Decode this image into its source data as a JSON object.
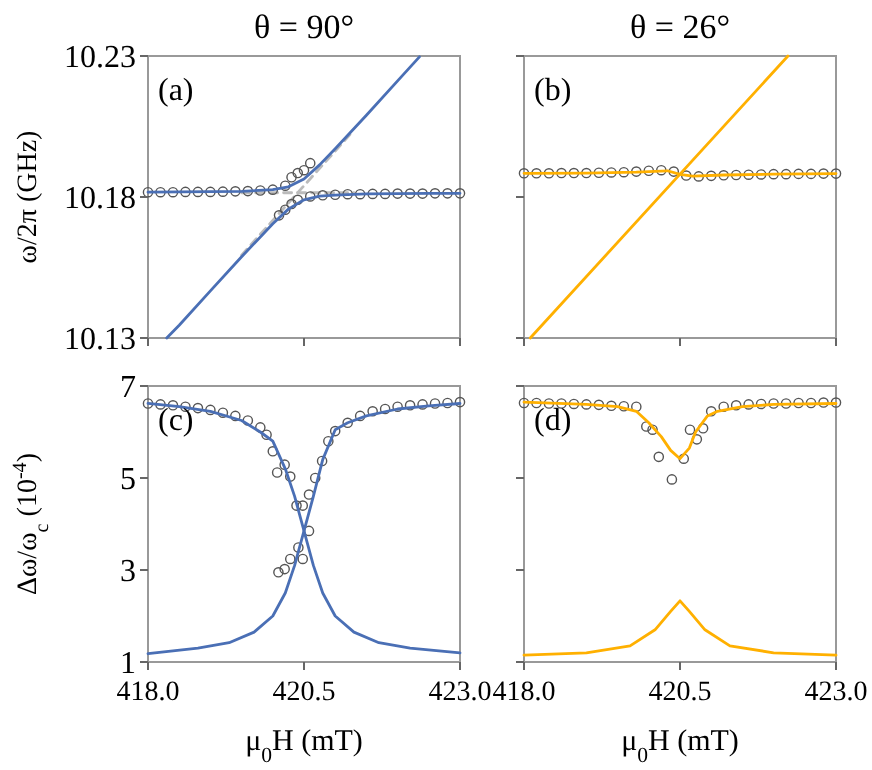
{
  "chart_data": [
    {
      "type": "line",
      "title": "θ = 90°",
      "ylabel": "ω/2π (GHz)",
      "annotations": [
        "(a)"
      ],
      "xlim": [
        418,
        423
      ],
      "xticks": [
        418,
        420.5,
        423
      ],
      "ylim": [
        10.13,
        10.23
      ],
      "yticks": [
        10.13,
        10.18,
        10.23
      ],
      "tick_labels": "y",
      "series": [
        {
          "color": "#bbbbbb",
          "line_style": "dashed",
          "x": [
            419.5,
            421.3
          ],
          "values": [
            10.1815,
            10.1815
          ]
        },
        {
          "color": "#bbbbbb",
          "line_style": "dashed",
          "x": [
            419.5,
            421.3
          ],
          "values": [
            10.1594,
            10.2037
          ]
        },
        {
          "type": "scatter",
          "marker": "circle",
          "color": "#555555",
          "x": [
            418.0,
            418.2,
            418.4,
            418.6,
            418.8,
            419.0,
            419.2,
            419.4,
            419.6,
            419.8,
            420.0,
            420.2,
            420.3,
            420.4,
            420.5,
            420.6
          ],
          "values": [
            10.1817,
            10.1817,
            10.1817,
            10.1818,
            10.1818,
            10.1818,
            10.1819,
            10.182,
            10.1821,
            10.1823,
            10.1826,
            10.184,
            10.187,
            10.1885,
            10.1895,
            10.192
          ]
        },
        {
          "type": "scatter",
          "marker": "circle",
          "color": "#555555",
          "x": [
            420.1,
            420.2,
            420.3,
            420.4,
            420.6,
            420.8,
            421.0,
            421.2,
            421.4,
            421.6,
            421.8,
            422.0,
            422.2,
            422.4,
            422.6,
            422.8,
            423.0
          ],
          "values": [
            10.1735,
            10.1755,
            10.1775,
            10.179,
            10.1802,
            10.1806,
            10.1808,
            10.181,
            10.181,
            10.1811,
            10.1811,
            10.1812,
            10.1812,
            10.1812,
            10.1813,
            10.1813,
            10.1813
          ]
        },
        {
          "color": "#4a6fb5",
          "x": [
            418,
            418.5,
            419,
            419.5,
            420,
            420.25,
            420.5,
            420.75,
            421,
            421.5,
            422,
            422.35
          ],
          "values": [
            10.1817,
            10.1818,
            10.1819,
            10.182,
            10.1826,
            10.1836,
            10.1864,
            10.1914,
            10.1971,
            10.209,
            10.2212,
            10.2297
          ]
        },
        {
          "color": "#4a6fb5",
          "x": [
            418.3,
            418.5,
            419,
            419.5,
            420,
            420.25,
            420.5,
            420.75,
            421,
            421.5,
            422,
            422.5,
            423
          ],
          "values": [
            10.13,
            10.1345,
            10.1467,
            10.1588,
            10.1705,
            10.1757,
            10.179,
            10.1803,
            10.1807,
            10.1811,
            10.1812,
            10.1813,
            10.1813
          ]
        }
      ]
    },
    {
      "type": "line",
      "title": "θ = 26°",
      "annotations": [
        "(b)"
      ],
      "xlim": [
        418,
        423
      ],
      "xticks": [
        418,
        420.5,
        423
      ],
      "ylim": [
        10.13,
        10.23
      ],
      "yticks": [
        10.13,
        10.18,
        10.23
      ],
      "tick_labels": false,
      "series": [
        {
          "type": "scatter",
          "marker": "circle",
          "color": "#555555",
          "x": [
            418.0,
            418.2,
            418.4,
            418.6,
            418.8,
            419.0,
            419.2,
            419.4,
            419.6,
            419.8,
            420.0,
            420.2,
            420.4,
            420.6,
            420.8,
            421.0,
            421.2,
            421.4,
            421.6,
            421.8,
            422.0,
            422.2,
            422.4,
            422.6,
            422.8,
            423.0
          ],
          "values": [
            10.1884,
            10.1884,
            10.1884,
            10.1885,
            10.1885,
            10.1885,
            10.1886,
            10.1887,
            10.1888,
            10.189,
            10.1893,
            10.1895,
            10.189,
            10.1876,
            10.1873,
            10.1875,
            10.1877,
            10.1878,
            10.1879,
            10.188,
            10.1881,
            10.1881,
            10.1882,
            10.1882,
            10.1883,
            10.1883
          ]
        },
        {
          "color": "#ffb000",
          "x": [
            418,
            419,
            419.8,
            420.3,
            420.5,
            420.7,
            421.2,
            422,
            423
          ],
          "values": [
            10.1884,
            10.1885,
            10.1888,
            10.1893,
            10.188,
            10.1874,
            10.1878,
            10.1881,
            10.1883
          ]
        },
        {
          "color": "#ffb000",
          "x": [
            418.1,
            422.23
          ],
          "values": [
            10.13,
            10.23
          ]
        }
      ]
    },
    {
      "type": "line",
      "xlabel": "μ$_{0}$H (mT)",
      "ylabel": "Δω/ω$_{c}$ (10$^{-4}$)",
      "annotations": [
        "(c)"
      ],
      "xlim": [
        418,
        423
      ],
      "xticks": [
        {
          "value": 418,
          "label": "418.0"
        },
        {
          "value": 420.5,
          "label": "420.5"
        },
        {
          "value": 423,
          "label": "423.0"
        }
      ],
      "ylim": [
        1,
        7
      ],
      "yticks": [
        1,
        3,
        5,
        7
      ],
      "series": [
        {
          "type": "scatter",
          "marker": "circle",
          "color": "#555555",
          "x": [
            418.0,
            418.2,
            418.4,
            418.6,
            418.8,
            419.0,
            419.2,
            419.4,
            419.6,
            419.8,
            419.9,
            420.0,
            420.07,
            420.19,
            420.28,
            420.38,
            420.48,
            420.41,
            420.48,
            420.09,
            420.19,
            420.28,
            420.58,
            420.58,
            420.68,
            420.79,
            420.89,
            421.0,
            421.2,
            421.4,
            421.6,
            421.8,
            422.0,
            422.2,
            422.4,
            422.6,
            422.8,
            423.0
          ],
          "values": [
            6.62,
            6.6,
            6.58,
            6.55,
            6.52,
            6.48,
            6.42,
            6.35,
            6.25,
            6.1,
            5.94,
            5.58,
            5.12,
            5.29,
            5.03,
            4.4,
            4.4,
            3.49,
            3.24,
            2.95,
            3.02,
            3.24,
            3.85,
            4.64,
            5.0,
            5.37,
            5.8,
            6.02,
            6.2,
            6.35,
            6.45,
            6.5,
            6.55,
            6.58,
            6.6,
            6.62,
            6.63,
            6.65
          ]
        },
        {
          "color": "#4a6fb5",
          "x": [
            418,
            418.5,
            419,
            419.5,
            419.8,
            420,
            420.2,
            420.35,
            420.5,
            420.65,
            420.8,
            421,
            421.3,
            421.7,
            422.2,
            423
          ],
          "values": [
            6.62,
            6.55,
            6.45,
            6.25,
            6.0,
            5.8,
            5.2,
            4.6,
            3.85,
            3.1,
            2.5,
            2.0,
            1.65,
            1.42,
            1.3,
            1.2
          ]
        },
        {
          "color": "#4a6fb5",
          "x": [
            418,
            418.8,
            419.3,
            419.7,
            420,
            420.2,
            420.35,
            420.5,
            420.65,
            420.8,
            421,
            421.2,
            421.5,
            422,
            422.5,
            423
          ],
          "values": [
            1.18,
            1.3,
            1.42,
            1.65,
            2.0,
            2.5,
            3.1,
            3.85,
            4.6,
            5.4,
            6.05,
            6.2,
            6.35,
            6.5,
            6.57,
            6.62
          ]
        }
      ]
    },
    {
      "type": "line",
      "xlabel": "μ$_{0}$H (mT)",
      "annotations": [
        "(d)"
      ],
      "xlim": [
        418,
        423
      ],
      "xticks": [
        {
          "value": 418,
          "label": "418.0"
        },
        {
          "value": 420.5,
          "label": "420.5"
        },
        {
          "value": 423,
          "label": "423.0"
        }
      ],
      "ylim": [
        1,
        7
      ],
      "yticks": [
        1,
        3,
        5,
        7
      ],
      "tick_labels": "x",
      "series": [
        {
          "type": "scatter",
          "marker": "circle",
          "color": "#555555",
          "x": [
            418.0,
            418.2,
            418.4,
            418.6,
            418.8,
            419.0,
            419.2,
            419.4,
            419.6,
            419.8,
            419.96,
            420.06,
            420.16,
            420.37,
            420.56,
            420.66,
            420.77,
            420.87,
            421.0,
            421.2,
            421.4,
            421.6,
            421.8,
            422.0,
            422.2,
            422.4,
            422.6,
            422.8,
            423.0
          ],
          "values": [
            6.63,
            6.63,
            6.62,
            6.62,
            6.61,
            6.6,
            6.59,
            6.57,
            6.56,
            6.55,
            6.12,
            6.05,
            5.46,
            4.97,
            5.42,
            6.05,
            5.84,
            6.08,
            6.45,
            6.55,
            6.58,
            6.6,
            6.61,
            6.62,
            6.62,
            6.63,
            6.63,
            6.64,
            6.64
          ]
        },
        {
          "color": "#ffb000",
          "x": [
            418,
            419,
            419.5,
            419.8,
            420,
            420.2,
            420.35,
            420.5,
            420.65,
            420.75,
            420.94,
            421.1,
            421.5,
            422,
            423
          ],
          "values": [
            6.65,
            6.6,
            6.55,
            6.45,
            6.2,
            5.9,
            5.6,
            5.42,
            5.65,
            6.0,
            6.35,
            6.45,
            6.55,
            6.6,
            6.62
          ]
        },
        {
          "color": "#ffb000",
          "x": [
            418,
            419,
            419.7,
            420.1,
            420.35,
            420.5,
            420.65,
            420.9,
            421.3,
            422,
            423
          ],
          "values": [
            1.15,
            1.2,
            1.35,
            1.7,
            2.1,
            2.33,
            2.1,
            1.7,
            1.35,
            1.2,
            1.15
          ]
        }
      ]
    }
  ]
}
